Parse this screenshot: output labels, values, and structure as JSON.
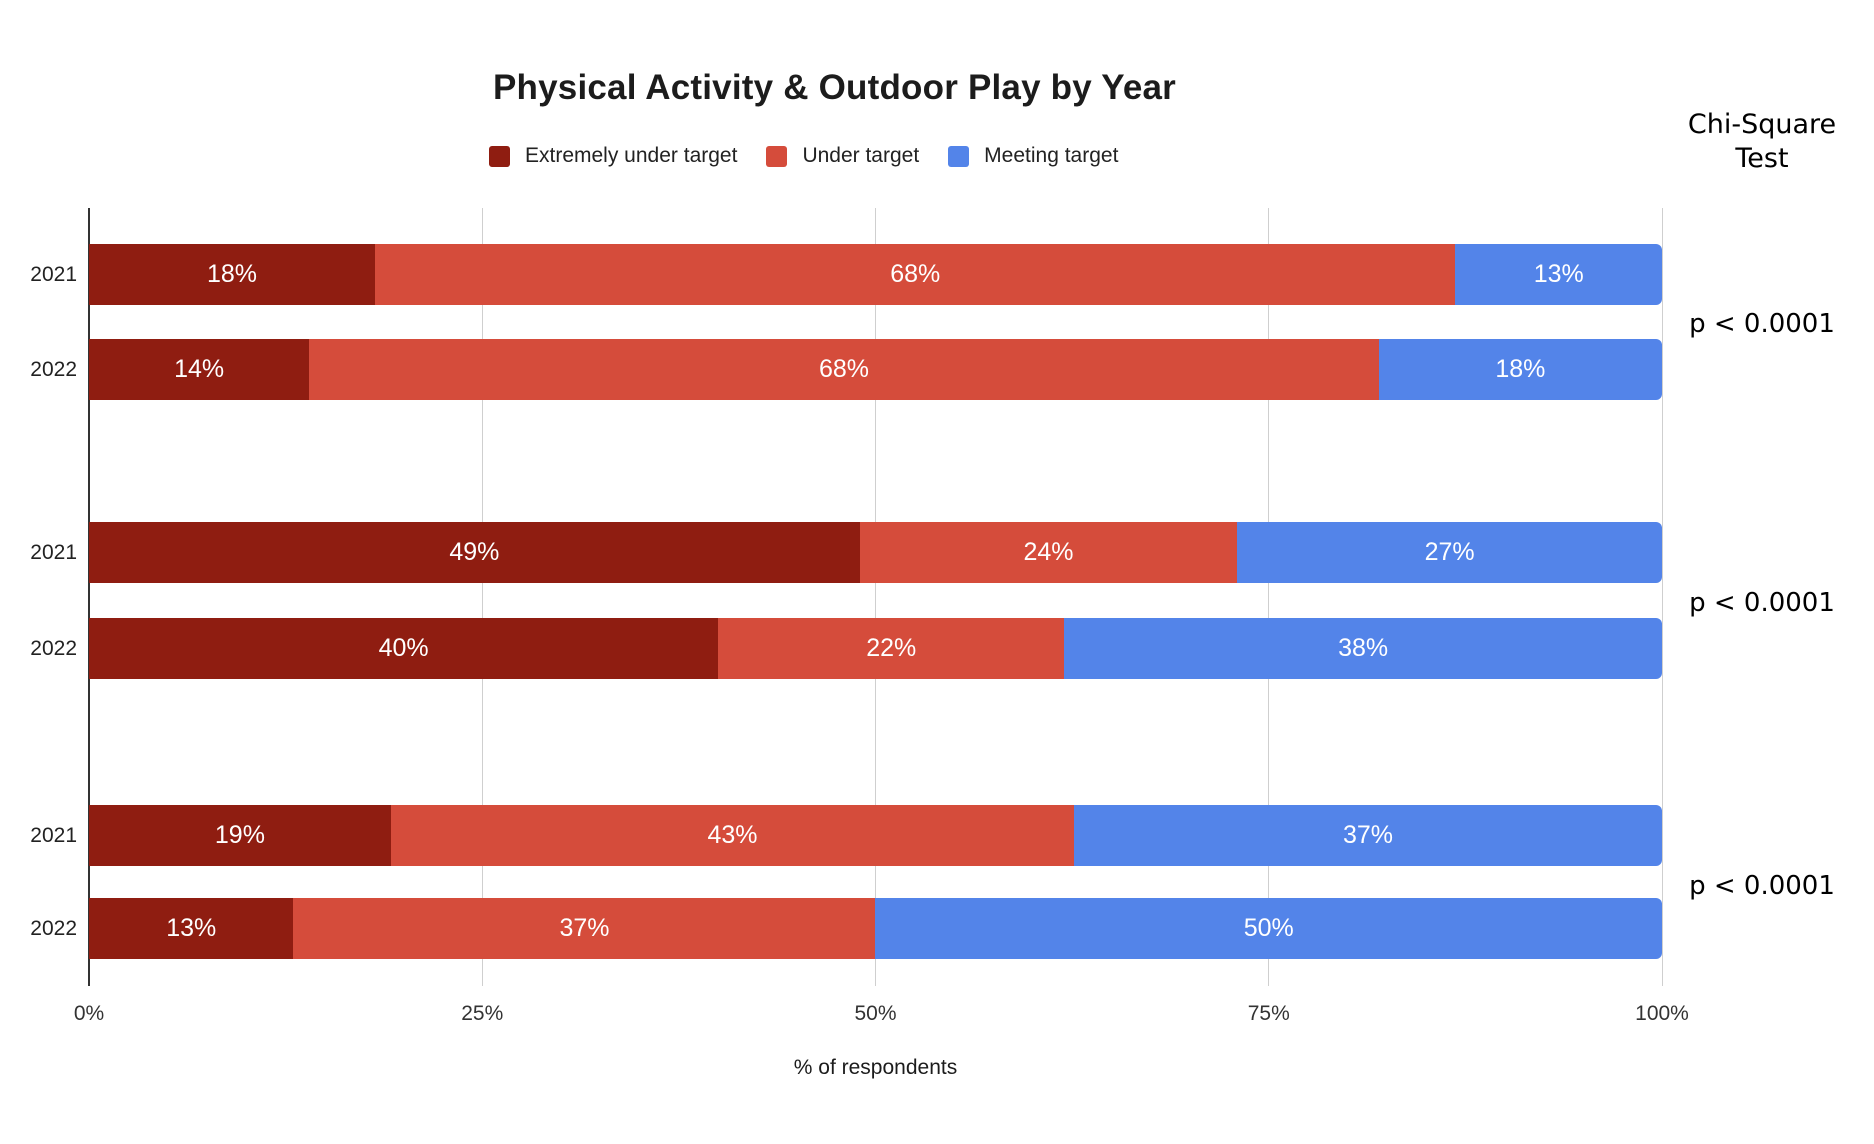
{
  "page": {
    "background": "#ffffff"
  },
  "chart_data": {
    "type": "bar",
    "orientation": "horizontal-stacked",
    "title": "Physical Activity & Outdoor Play by Year",
    "xlabel": "% of respondents",
    "x_ticks": [
      "0%",
      "25%",
      "50%",
      "75%",
      "100%"
    ],
    "xlim": [
      0,
      100
    ],
    "grid": true,
    "legend_position": "top",
    "value_suffix": "%",
    "legend": [
      {
        "label": "Extremely under target",
        "color": "#8F1D11"
      },
      {
        "label": "Under target",
        "color": "#D54C3B"
      },
      {
        "label": "Meeting target",
        "color": "#5384E9"
      }
    ],
    "annotation_column": {
      "header": "Chi-Square Test",
      "values": [
        "p < 0.0001",
        "p < 0.0001",
        "p < 0.0001"
      ]
    },
    "groups": [
      {
        "p_value": "p < 0.0001",
        "rows": [
          {
            "label": "2021",
            "values": [
              18,
              68,
              13
            ]
          },
          {
            "label": "2022",
            "values": [
              14,
              68,
              18
            ]
          }
        ]
      },
      {
        "p_value": "p < 0.0001",
        "rows": [
          {
            "label": "2021",
            "values": [
              49,
              24,
              27
            ]
          },
          {
            "label": "2022",
            "values": [
              40,
              22,
              38
            ]
          }
        ]
      },
      {
        "p_value": "p < 0.0001",
        "rows": [
          {
            "label": "2021",
            "values": [
              19,
              43,
              37
            ]
          },
          {
            "label": "2022",
            "values": [
              13,
              37,
              50
            ]
          }
        ]
      }
    ]
  }
}
